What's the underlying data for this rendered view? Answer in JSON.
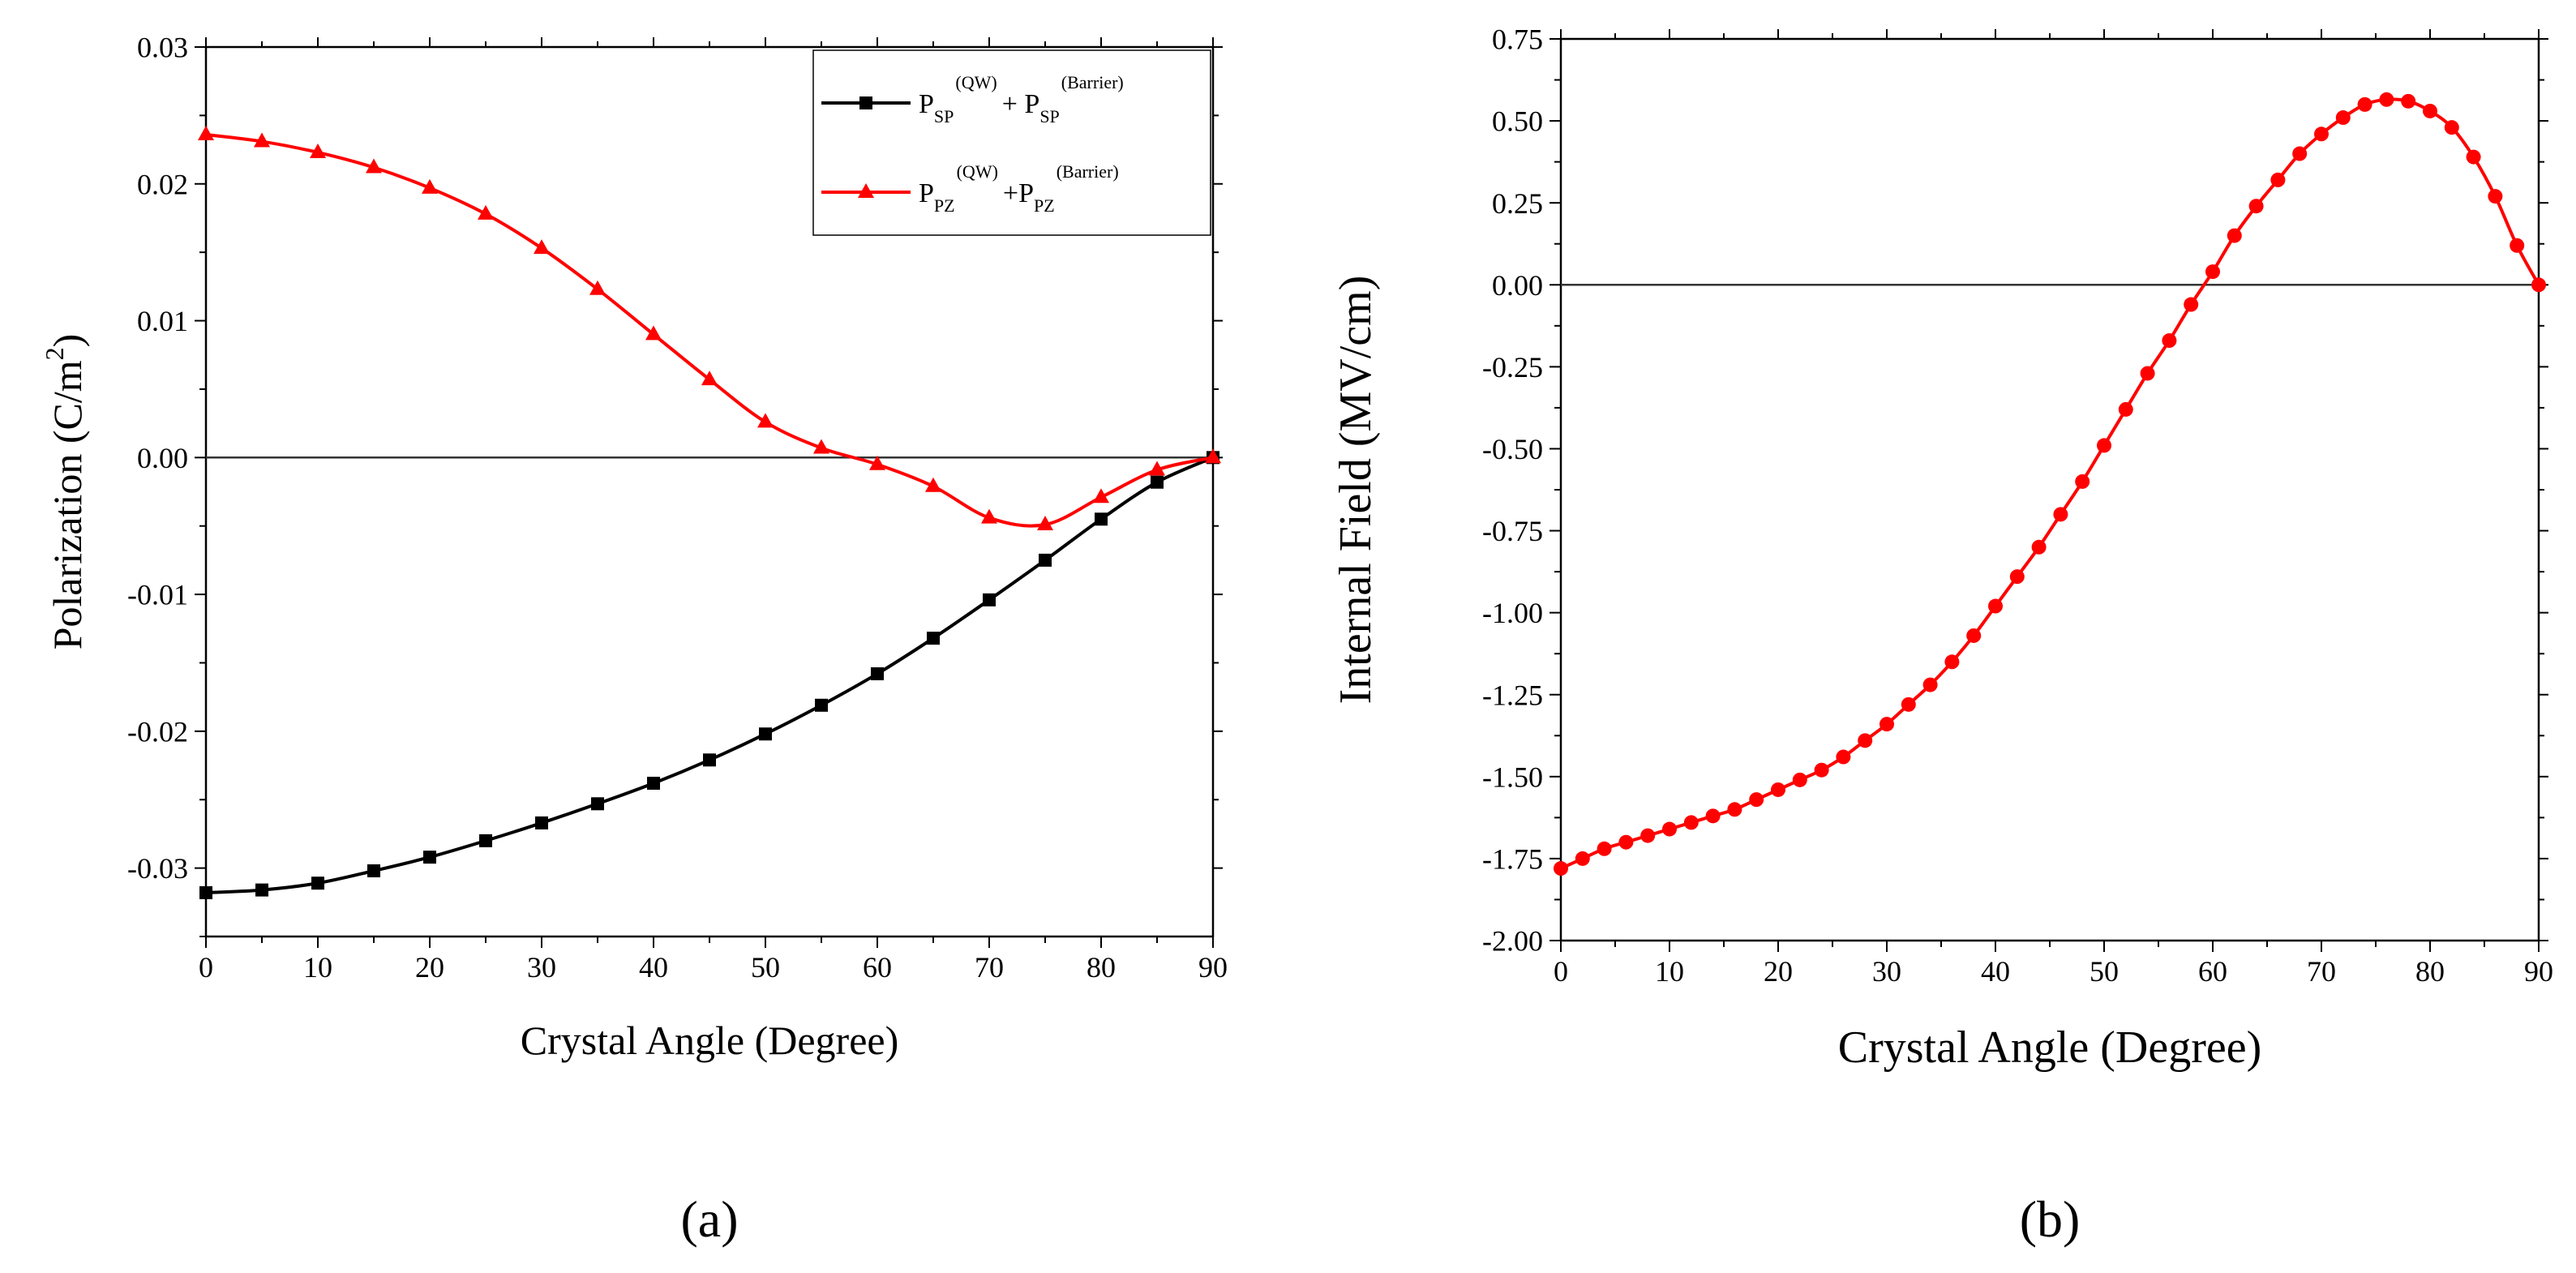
{
  "chart_data": [
    {
      "id": "a",
      "panel_label": "(a)",
      "type": "line",
      "xlabel": "Crystal Angle (Degree)",
      "ylabel": "Polarization (C/m",
      "ylabel_sup": "2",
      "ylabel_close": ")",
      "xlim": [
        0,
        90
      ],
      "ylim": [
        -0.035,
        0.03
      ],
      "xticks": [
        "0",
        "10",
        "20",
        "30",
        "40",
        "50",
        "60",
        "70",
        "80",
        "90"
      ],
      "yticks": [
        "-0.03",
        "-0.02",
        "-0.01",
        "0.00",
        "0.01",
        "0.02",
        "0.03"
      ],
      "zero_line": true,
      "legend_position": "top-right",
      "series": [
        {
          "name": "PSP(QW) + PSP(Barrier)",
          "legend": {
            "p": "P",
            "sub1": "SP",
            "sup1": "(QW)",
            "plus": "+ P",
            "sub2": "SP",
            "sup2": "(Barrier)"
          },
          "color": "#000000",
          "marker": "square",
          "x": [
            0,
            5,
            10,
            15,
            20,
            25,
            30,
            35,
            40,
            45,
            50,
            55,
            60,
            65,
            70,
            75,
            80,
            85,
            90
          ],
          "y": [
            -0.0318,
            -0.0316,
            -0.0311,
            -0.0302,
            -0.0292,
            -0.028,
            -0.0267,
            -0.0253,
            -0.0238,
            -0.0221,
            -0.0202,
            -0.0181,
            -0.0158,
            -0.0132,
            -0.0104,
            -0.0075,
            -0.0045,
            -0.0018,
            0.0
          ]
        },
        {
          "name": "PPZ(QW)+PPZ(Barrier)",
          "legend": {
            "p": "P",
            "sub1": "PZ",
            "sup1": "(QW)",
            "plus": "+P",
            "sub2": "PZ",
            "sup2": "(Barrier)"
          },
          "color": "#ff0000",
          "marker": "triangle",
          "x": [
            0,
            5,
            10,
            15,
            20,
            25,
            30,
            35,
            40,
            45,
            50,
            55,
            60,
            65,
            70,
            75,
            80,
            85,
            90
          ],
          "y": [
            0.0236,
            0.0231,
            0.0223,
            0.0212,
            0.0197,
            0.0178,
            0.0153,
            0.0123,
            0.009,
            0.0057,
            0.0026,
            0.0007,
            -0.0005,
            -0.0021,
            -0.0044,
            -0.0049,
            -0.0029,
            -0.0009,
            0.0
          ]
        }
      ]
    },
    {
      "id": "b",
      "panel_label": "(b)",
      "type": "line",
      "xlabel": "Crystal Angle (Degree)",
      "ylabel": "Internal Field (MV/cm)",
      "xlim": [
        0,
        90
      ],
      "ylim": [
        -2.0,
        0.75
      ],
      "xticks": [
        "0",
        "10",
        "20",
        "30",
        "40",
        "50",
        "60",
        "70",
        "80",
        "90"
      ],
      "yticks": [
        "-2.00",
        "-1.75",
        "-1.50",
        "-1.25",
        "-1.00",
        "-0.75",
        "-0.50",
        "-0.25",
        "0.00",
        "0.25",
        "0.50",
        "0.75"
      ],
      "zero_line": true,
      "series": [
        {
          "name": "Internal Field",
          "color": "#ff0000",
          "marker": "circle",
          "x": [
            0,
            2,
            4,
            6,
            8,
            10,
            12,
            14,
            16,
            18,
            20,
            22,
            24,
            26,
            28,
            30,
            32,
            34,
            36,
            38,
            40,
            42,
            44,
            46,
            48,
            50,
            52,
            54,
            56,
            58,
            60,
            62,
            64,
            66,
            68,
            70,
            72,
            74,
            76,
            78,
            80,
            82,
            84,
            86,
            88,
            90
          ],
          "y": [
            -1.78,
            -1.75,
            -1.72,
            -1.7,
            -1.68,
            -1.66,
            -1.64,
            -1.62,
            -1.6,
            -1.57,
            -1.54,
            -1.51,
            -1.48,
            -1.44,
            -1.39,
            -1.34,
            -1.28,
            -1.22,
            -1.15,
            -1.07,
            -0.98,
            -0.89,
            -0.8,
            -0.7,
            -0.6,
            -0.49,
            -0.38,
            -0.27,
            -0.17,
            -0.06,
            0.04,
            0.15,
            0.24,
            0.32,
            0.4,
            0.46,
            0.51,
            0.55,
            0.565,
            0.56,
            0.53,
            0.48,
            0.39,
            0.27,
            0.12,
            0.0
          ]
        }
      ]
    }
  ]
}
